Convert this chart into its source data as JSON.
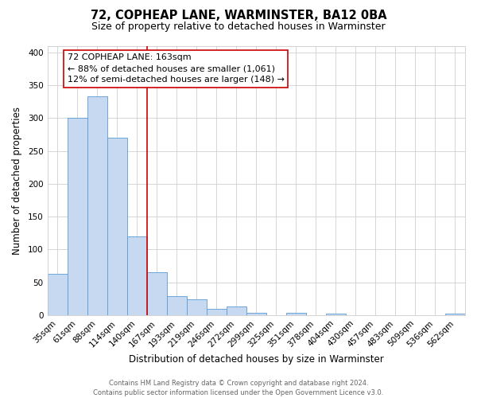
{
  "title": "72, COPHEAP LANE, WARMINSTER, BA12 0BA",
  "subtitle": "Size of property relative to detached houses in Warminster",
  "xlabel": "Distribution of detached houses by size in Warminster",
  "ylabel": "Number of detached properties",
  "footer_line1": "Contains HM Land Registry data © Crown copyright and database right 2024.",
  "footer_line2": "Contains public sector information licensed under the Open Government Licence v3.0.",
  "categories": [
    "35sqm",
    "61sqm",
    "88sqm",
    "114sqm",
    "140sqm",
    "167sqm",
    "193sqm",
    "219sqm",
    "246sqm",
    "272sqm",
    "299sqm",
    "325sqm",
    "351sqm",
    "378sqm",
    "404sqm",
    "430sqm",
    "457sqm",
    "483sqm",
    "509sqm",
    "536sqm",
    "562sqm"
  ],
  "values": [
    63,
    300,
    333,
    270,
    120,
    65,
    29,
    24,
    10,
    13,
    4,
    0,
    3,
    0,
    2,
    0,
    0,
    0,
    0,
    0,
    2
  ],
  "bar_color": "#c6d9f0",
  "bar_edge_color": "#5b9bd5",
  "vline_x_index": 5,
  "vline_color": "#cc0000",
  "annotation_text": "72 COPHEAP LANE: 163sqm\n← 88% of detached houses are smaller (1,061)\n12% of semi-detached houses are larger (148) →",
  "annotation_box_color": "#ffffff",
  "annotation_box_edge_color": "#cc0000",
  "ylim": [
    0,
    410
  ],
  "yticks": [
    0,
    50,
    100,
    150,
    200,
    250,
    300,
    350,
    400
  ],
  "background_color": "#ffffff",
  "grid_color": "#d0d0d0",
  "title_fontsize": 10.5,
  "subtitle_fontsize": 9,
  "axis_label_fontsize": 8.5,
  "tick_fontsize": 7.5,
  "annotation_fontsize": 8
}
